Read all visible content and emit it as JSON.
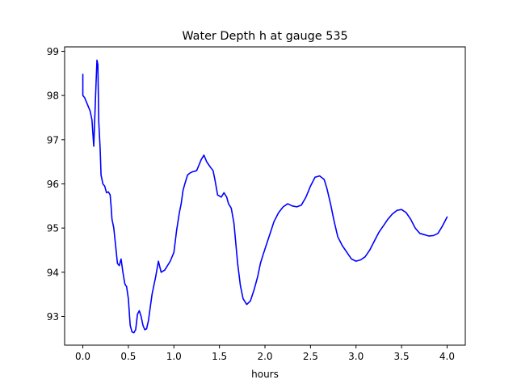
{
  "chart_data": {
    "type": "line",
    "title": "Water Depth h at gauge 535",
    "xlabel": "hours",
    "ylabel": "",
    "xlim": [
      -0.2,
      4.2
    ],
    "ylim": [
      92.35,
      99.1
    ],
    "xticks": [
      0.0,
      0.5,
      1.0,
      1.5,
      2.0,
      2.5,
      3.0,
      3.5,
      4.0
    ],
    "xtick_labels": [
      "0.0",
      "0.5",
      "1.0",
      "1.5",
      "2.0",
      "2.5",
      "3.0",
      "3.5",
      "4.0"
    ],
    "yticks": [
      93,
      94,
      95,
      96,
      97,
      98,
      99
    ],
    "ytick_labels": [
      "93",
      "94",
      "95",
      "96",
      "97",
      "98",
      "99"
    ],
    "grid": false,
    "series": [
      {
        "color": "#0000ff",
        "x": [
          0.0,
          0.0,
          0.02,
          0.04,
          0.06,
          0.08,
          0.1,
          0.12,
          0.14,
          0.155,
          0.165,
          0.175,
          0.19,
          0.2,
          0.22,
          0.24,
          0.26,
          0.28,
          0.3,
          0.31,
          0.32,
          0.34,
          0.36,
          0.38,
          0.4,
          0.42,
          0.44,
          0.46,
          0.47,
          0.48,
          0.5,
          0.52,
          0.54,
          0.56,
          0.58,
          0.6,
          0.62,
          0.64,
          0.66,
          0.68,
          0.7,
          0.72,
          0.74,
          0.76,
          0.78,
          0.8,
          0.83,
          0.86,
          0.9,
          0.93,
          0.96,
          1.0,
          1.03,
          1.06,
          1.08,
          1.1,
          1.12,
          1.15,
          1.18,
          1.2,
          1.22,
          1.25,
          1.3,
          1.33,
          1.36,
          1.4,
          1.43,
          1.45,
          1.48,
          1.52,
          1.55,
          1.58,
          1.6,
          1.63,
          1.66,
          1.7,
          1.73,
          1.76,
          1.8,
          1.84,
          1.88,
          1.92,
          1.95,
          1.98,
          2.02,
          2.06,
          2.1,
          2.15,
          2.2,
          2.25,
          2.3,
          2.35,
          2.4,
          2.45,
          2.5,
          2.55,
          2.6,
          2.65,
          2.68,
          2.72,
          2.76,
          2.8,
          2.85,
          2.9,
          2.95,
          3.0,
          3.05,
          3.1,
          3.15,
          3.2,
          3.25,
          3.3,
          3.35,
          3.4,
          3.45,
          3.5,
          3.55,
          3.6,
          3.65,
          3.7,
          3.75,
          3.8,
          3.85,
          3.9,
          3.95,
          4.0
        ],
        "y": [
          98.48,
          98.0,
          97.95,
          97.85,
          97.75,
          97.65,
          97.45,
          96.85,
          98.0,
          98.8,
          98.7,
          97.4,
          96.8,
          96.2,
          96.0,
          95.95,
          95.8,
          95.82,
          95.75,
          95.5,
          95.2,
          95.0,
          94.6,
          94.2,
          94.15,
          94.3,
          94.0,
          93.75,
          93.7,
          93.68,
          93.4,
          92.8,
          92.65,
          92.63,
          92.7,
          93.05,
          93.13,
          93.0,
          92.8,
          92.7,
          92.72,
          92.9,
          93.2,
          93.5,
          93.7,
          93.9,
          94.25,
          94.0,
          94.05,
          94.15,
          94.25,
          94.45,
          94.95,
          95.35,
          95.55,
          95.85,
          96.0,
          96.2,
          96.25,
          96.27,
          96.28,
          96.3,
          96.55,
          96.65,
          96.5,
          96.38,
          96.3,
          96.1,
          95.75,
          95.7,
          95.8,
          95.7,
          95.55,
          95.45,
          95.1,
          94.2,
          93.7,
          93.4,
          93.27,
          93.35,
          93.6,
          93.9,
          94.2,
          94.4,
          94.65,
          94.9,
          95.15,
          95.35,
          95.48,
          95.55,
          95.5,
          95.48,
          95.52,
          95.7,
          95.95,
          96.15,
          96.18,
          96.1,
          95.9,
          95.55,
          95.15,
          94.8,
          94.6,
          94.45,
          94.3,
          94.25,
          94.28,
          94.35,
          94.5,
          94.7,
          94.9,
          95.05,
          95.2,
          95.32,
          95.4,
          95.42,
          95.35,
          95.2,
          95.0,
          94.88,
          94.85,
          94.82,
          94.83,
          94.88,
          95.05,
          95.25
        ]
      }
    ]
  }
}
